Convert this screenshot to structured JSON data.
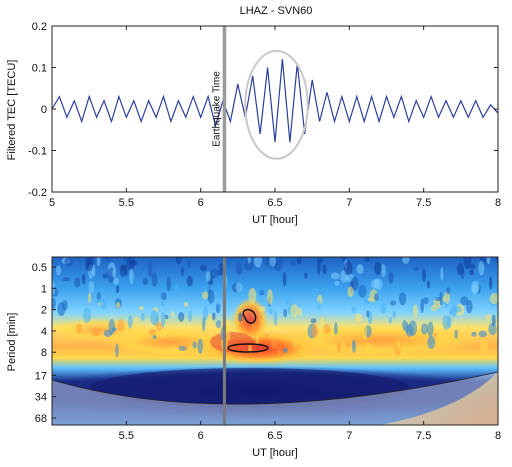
{
  "chart_data": [
    {
      "type": "line",
      "title": "LHAZ - SVN60",
      "xlabel": "UT [hour]",
      "ylabel": "Filtered TEC [TECU]",
      "xlim": [
        5,
        8
      ],
      "ylim": [
        -0.2,
        0.2
      ],
      "x_ticks": [
        "5",
        "5.5",
        "6",
        "6.5",
        "7",
        "7.5",
        "8"
      ],
      "y_ticks": [
        "0.2",
        "0.1",
        "0",
        "-0.1",
        "-0.2"
      ],
      "series": [
        {
          "color": "#2b3f9e",
          "x": [
            5.0,
            5.05,
            5.1,
            5.15,
            5.2,
            5.25,
            5.3,
            5.35,
            5.4,
            5.45,
            5.5,
            5.55,
            5.6,
            5.65,
            5.7,
            5.75,
            5.8,
            5.85,
            5.9,
            5.95,
            6.0,
            6.05,
            6.1,
            6.15,
            6.2,
            6.25,
            6.3,
            6.35,
            6.4,
            6.45,
            6.5,
            6.55,
            6.6,
            6.65,
            6.7,
            6.75,
            6.8,
            6.85,
            6.9,
            6.95,
            7.0,
            7.05,
            7.1,
            7.15,
            7.2,
            7.25,
            7.3,
            7.35,
            7.4,
            7.45,
            7.5,
            7.55,
            7.6,
            7.65,
            7.7,
            7.75,
            7.8,
            7.85,
            7.9,
            7.95,
            8.0
          ],
          "values": [
            0.0,
            0.03,
            -0.02,
            0.02,
            -0.03,
            0.03,
            -0.02,
            0.02,
            -0.03,
            0.03,
            -0.02,
            0.02,
            -0.03,
            0.02,
            -0.02,
            0.03,
            -0.03,
            0.02,
            -0.02,
            0.03,
            -0.02,
            0.03,
            -0.04,
            0.02,
            -0.03,
            0.06,
            -0.02,
            0.08,
            -0.06,
            0.1,
            -0.08,
            0.12,
            -0.08,
            0.11,
            -0.06,
            0.07,
            -0.03,
            0.04,
            -0.03,
            0.03,
            -0.03,
            0.03,
            -0.03,
            0.03,
            -0.03,
            0.03,
            -0.02,
            0.03,
            -0.03,
            0.02,
            -0.02,
            0.03,
            -0.02,
            0.02,
            -0.02,
            0.02,
            -0.02,
            0.02,
            -0.02,
            0.01,
            -0.01
          ]
        }
      ],
      "annotations": [
        {
          "text": "Earthquake Time",
          "x": 6.16
        }
      ],
      "highlight": {
        "x_range": [
          6.3,
          6.72
        ],
        "y_range": [
          -0.12,
          0.14
        ]
      }
    },
    {
      "type": "heatmap",
      "xlabel": "UT [hour]",
      "ylabel": "Period [min]",
      "xlim": [
        5,
        8
      ],
      "x_ticks": [
        "5.5",
        "6",
        "6.5",
        "7",
        "7.5",
        "8"
      ],
      "y_ticks": [
        "0.5",
        "1",
        "2",
        "4",
        "8",
        "17",
        "34",
        "68"
      ],
      "earthquake_x": 6.16,
      "colormap": [
        "#1a237e",
        "#1565c0",
        "#2196f3",
        "#5ec4ff",
        "#fff176",
        "#ffb74d",
        "#ff7043",
        "#d32f2f"
      ]
    }
  ]
}
